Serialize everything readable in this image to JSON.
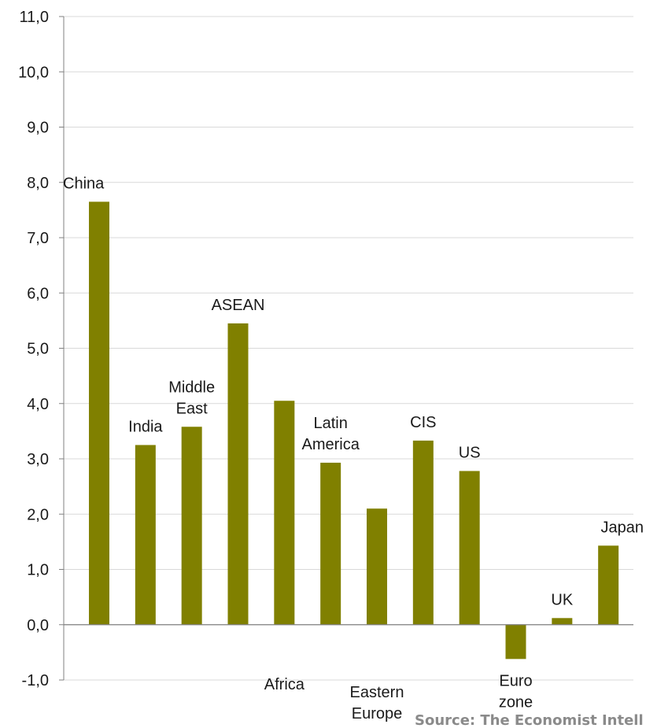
{
  "chart_data": {
    "type": "bar",
    "categories": [
      "China",
      "India",
      "Middle East",
      "ASEAN",
      "Africa",
      "Latin America",
      "Eastern Europe",
      "CIS",
      "US",
      "Euro zone",
      "UK",
      "Japan"
    ],
    "category_lines": [
      [
        "China"
      ],
      [
        "India"
      ],
      [
        "Middle",
        "East"
      ],
      [
        "ASEAN"
      ],
      [
        "Africa"
      ],
      [
        "Latin",
        "America"
      ],
      [
        "Eastern",
        "Europe"
      ],
      [
        "CIS"
      ],
      [
        "US"
      ],
      [
        "Euro",
        "zone"
      ],
      [
        "UK"
      ],
      [
        "Japan"
      ]
    ],
    "values": [
      7.65,
      3.25,
      3.58,
      5.45,
      4.05,
      2.93,
      2.1,
      3.33,
      2.78,
      -0.62,
      0.12,
      1.43
    ],
    "ylim": [
      -1.0,
      11.0
    ],
    "yticks": [
      "-1,0",
      "0,0",
      "1,0",
      "2,0",
      "3,0",
      "4,0",
      "5,0",
      "6,0",
      "7,0",
      "8,0",
      "9,0",
      "10,0",
      "11,0"
    ],
    "bar_color": "#808000",
    "grid": true,
    "source": "Source: The Economist Intell"
  }
}
